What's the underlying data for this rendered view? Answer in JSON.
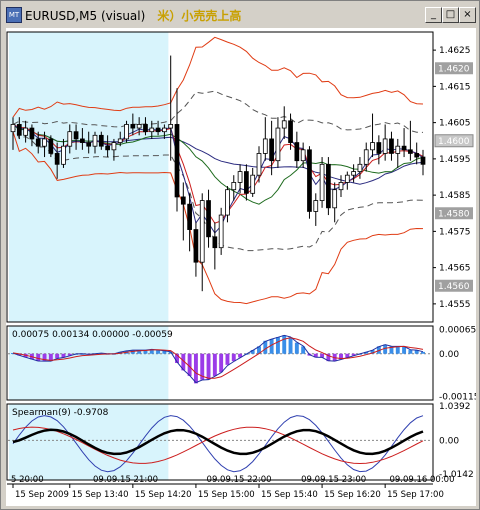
{
  "window": {
    "title": "EURUSD,M5 (visual)",
    "jp_title": "米）小売売上高",
    "minimize_label": "_",
    "maximize_label": "□",
    "close_label": "×"
  },
  "colors": {
    "highlight": "#d8f4fc",
    "bull": "#ffffff",
    "bear": "#000000",
    "band_outer": "#e03c14",
    "band_inner": "#555555",
    "ma_dark": "#2b2b80",
    "ma_green": "#1e6b1e",
    "ma_red": "#cc1e1e",
    "macd_pos": "#3a8ee8",
    "macd_neg": "#9b3ce8",
    "sig_blue": "#2030a0",
    "sig_red": "#cc1e1e",
    "spear_black": "#000000",
    "spear_blue": "#3040b0",
    "spear_red": "#cc1e1e",
    "price_label_bg": "#a0a0a0",
    "price_label_active_bg": "#c8c8c8"
  },
  "chart_data": {
    "type": "candlestick",
    "symbol": "EURUSD",
    "timeframe": "M5",
    "price_axis": {
      "ylim": [
        1.455,
        1.463
      ],
      "ticks": [
        "1.4625",
        "1.4615",
        "1.4605",
        "1.4595",
        "1.4585",
        "1.4575",
        "1.4565",
        "1.4555"
      ],
      "tick_values": [
        1.4625,
        1.4615,
        1.4605,
        1.4595,
        1.4585,
        1.4575,
        1.4565,
        1.4555
      ],
      "grey_labels": [
        "1.4620",
        "1.4580",
        "1.4560"
      ],
      "grey_values": [
        1.462,
        1.458,
        1.456
      ],
      "current_label": "1.4600",
      "current_value": 1.46
    },
    "candles": [
      {
        "o": 1.46025,
        "h": 1.46065,
        "l": 1.45975,
        "c": 1.46045
      },
      {
        "o": 1.46045,
        "h": 1.46065,
        "l": 1.46005,
        "c": 1.46015
      },
      {
        "o": 1.46015,
        "h": 1.46055,
        "l": 1.45995,
        "c": 1.46035
      },
      {
        "o": 1.46035,
        "h": 1.46045,
        "l": 1.45985,
        "c": 1.46005
      },
      {
        "o": 1.46005,
        "h": 1.46025,
        "l": 1.45965,
        "c": 1.45985
      },
      {
        "o": 1.45985,
        "h": 1.46025,
        "l": 1.45955,
        "c": 1.46005
      },
      {
        "o": 1.46005,
        "h": 1.46015,
        "l": 1.45955,
        "c": 1.45965
      },
      {
        "o": 1.45965,
        "h": 1.45995,
        "l": 1.45895,
        "c": 1.45935
      },
      {
        "o": 1.45935,
        "h": 1.46005,
        "l": 1.45925,
        "c": 1.45985
      },
      {
        "o": 1.45985,
        "h": 1.46045,
        "l": 1.45965,
        "c": 1.46025
      },
      {
        "o": 1.46025,
        "h": 1.46045,
        "l": 1.45975,
        "c": 1.46005
      },
      {
        "o": 1.46005,
        "h": 1.46035,
        "l": 1.45975,
        "c": 1.45995
      },
      {
        "o": 1.45995,
        "h": 1.46025,
        "l": 1.45965,
        "c": 1.45985
      },
      {
        "o": 1.45985,
        "h": 1.46025,
        "l": 1.45965,
        "c": 1.46015
      },
      {
        "o": 1.46015,
        "h": 1.46025,
        "l": 1.45975,
        "c": 1.45985
      },
      {
        "o": 1.45985,
        "h": 1.46015,
        "l": 1.45955,
        "c": 1.45975
      },
      {
        "o": 1.45975,
        "h": 1.46005,
        "l": 1.45945,
        "c": 1.45995
      },
      {
        "o": 1.45995,
        "h": 1.46025,
        "l": 1.45985,
        "c": 1.46005
      },
      {
        "o": 1.46005,
        "h": 1.46055,
        "l": 1.45995,
        "c": 1.46045
      },
      {
        "o": 1.46045,
        "h": 1.46075,
        "l": 1.46015,
        "c": 1.46035
      },
      {
        "o": 1.46035,
        "h": 1.46065,
        "l": 1.46015,
        "c": 1.46045
      },
      {
        "o": 1.46045,
        "h": 1.46065,
        "l": 1.46015,
        "c": 1.46025
      },
      {
        "o": 1.46025,
        "h": 1.46055,
        "l": 1.46005,
        "c": 1.46035
      },
      {
        "o": 1.46035,
        "h": 1.46055,
        "l": 1.46015,
        "c": 1.46025
      },
      {
        "o": 1.46025,
        "h": 1.46045,
        "l": 1.46005,
        "c": 1.46035
      },
      {
        "o": 1.46035,
        "h": 1.46235,
        "l": 1.45945,
        "c": 1.46045
      },
      {
        "o": 1.46045,
        "h": 1.46145,
        "l": 1.45805,
        "c": 1.45845
      },
      {
        "o": 1.45845,
        "h": 1.45885,
        "l": 1.45725,
        "c": 1.45825
      },
      {
        "o": 1.45825,
        "h": 1.45855,
        "l": 1.45695,
        "c": 1.45755
      },
      {
        "o": 1.45755,
        "h": 1.45775,
        "l": 1.45625,
        "c": 1.45665
      },
      {
        "o": 1.45665,
        "h": 1.45855,
        "l": 1.45585,
        "c": 1.45835
      },
      {
        "o": 1.45835,
        "h": 1.45865,
        "l": 1.45705,
        "c": 1.45735
      },
      {
        "o": 1.45735,
        "h": 1.45775,
        "l": 1.45645,
        "c": 1.45705
      },
      {
        "o": 1.45705,
        "h": 1.45815,
        "l": 1.45685,
        "c": 1.45795
      },
      {
        "o": 1.45795,
        "h": 1.45875,
        "l": 1.45775,
        "c": 1.45865
      },
      {
        "o": 1.45865,
        "h": 1.45905,
        "l": 1.45835,
        "c": 1.45885
      },
      {
        "o": 1.45885,
        "h": 1.45935,
        "l": 1.45855,
        "c": 1.45915
      },
      {
        "o": 1.45915,
        "h": 1.45935,
        "l": 1.45835,
        "c": 1.45855
      },
      {
        "o": 1.45855,
        "h": 1.45925,
        "l": 1.45845,
        "c": 1.45905
      },
      {
        "o": 1.45905,
        "h": 1.45985,
        "l": 1.45885,
        "c": 1.45965
      },
      {
        "o": 1.45965,
        "h": 1.46065,
        "l": 1.45945,
        "c": 1.46005
      },
      {
        "o": 1.46005,
        "h": 1.46055,
        "l": 1.45905,
        "c": 1.45945
      },
      {
        "o": 1.45945,
        "h": 1.46065,
        "l": 1.45925,
        "c": 1.46035
      },
      {
        "o": 1.46035,
        "h": 1.46095,
        "l": 1.46005,
        "c": 1.46055
      },
      {
        "o": 1.46055,
        "h": 1.46075,
        "l": 1.45975,
        "c": 1.45995
      },
      {
        "o": 1.45995,
        "h": 1.46025,
        "l": 1.45925,
        "c": 1.45945
      },
      {
        "o": 1.45945,
        "h": 1.45995,
        "l": 1.45925,
        "c": 1.45975
      },
      {
        "o": 1.45975,
        "h": 1.45985,
        "l": 1.45785,
        "c": 1.45805
      },
      {
        "o": 1.45805,
        "h": 1.45855,
        "l": 1.45765,
        "c": 1.45835
      },
      {
        "o": 1.45835,
        "h": 1.45955,
        "l": 1.45815,
        "c": 1.45935
      },
      {
        "o": 1.45935,
        "h": 1.45955,
        "l": 1.45795,
        "c": 1.45815
      },
      {
        "o": 1.45815,
        "h": 1.45885,
        "l": 1.45775,
        "c": 1.45865
      },
      {
        "o": 1.45865,
        "h": 1.45905,
        "l": 1.45845,
        "c": 1.45885
      },
      {
        "o": 1.45885,
        "h": 1.45915,
        "l": 1.45865,
        "c": 1.45905
      },
      {
        "o": 1.45905,
        "h": 1.45935,
        "l": 1.45885,
        "c": 1.45915
      },
      {
        "o": 1.45915,
        "h": 1.45955,
        "l": 1.45895,
        "c": 1.45935
      },
      {
        "o": 1.45935,
        "h": 1.45995,
        "l": 1.45915,
        "c": 1.45975
      },
      {
        "o": 1.45975,
        "h": 1.46075,
        "l": 1.45955,
        "c": 1.45995
      },
      {
        "o": 1.45995,
        "h": 1.46015,
        "l": 1.45935,
        "c": 1.45965
      },
      {
        "o": 1.45965,
        "h": 1.46045,
        "l": 1.45945,
        "c": 1.46005
      },
      {
        "o": 1.46005,
        "h": 1.46025,
        "l": 1.45945,
        "c": 1.45965
      },
      {
        "o": 1.45965,
        "h": 1.46005,
        "l": 1.45925,
        "c": 1.45985
      },
      {
        "o": 1.45985,
        "h": 1.46035,
        "l": 1.45955,
        "c": 1.45975
      },
      {
        "o": 1.45975,
        "h": 1.46055,
        "l": 1.45945,
        "c": 1.45965
      },
      {
        "o": 1.45965,
        "h": 1.45995,
        "l": 1.45935,
        "c": 1.45955
      },
      {
        "o": 1.45955,
        "h": 1.45975,
        "l": 1.45905,
        "c": 1.45935
      }
    ],
    "highlight_span": [
      0,
      24
    ],
    "macd": {
      "header": "0.00075 0.00134 0.00000 -0.00059",
      "ylim": [
        -0.00125,
        0.00075
      ],
      "ticks": [
        "0.00065",
        "0.00",
        "-0.00115"
      ],
      "tick_values": [
        0.00065,
        0.0,
        -0.00115
      ],
      "hist": [
        2e-05,
        -5e-05,
        -0.0001,
        -0.00015,
        -0.0002,
        -0.0002,
        -0.0002,
        -0.00012,
        -0.0001,
        -5e-05,
        0.0,
        0.0,
        -2e-05,
        0.0,
        2e-05,
        0.0,
        0.0,
        5e-05,
        8e-05,
        0.0001,
        0.0001,
        0.0001,
        0.00012,
        0.0001,
        8e-05,
        5e-05,
        -0.00025,
        -0.00045,
        -0.0006,
        -0.0008,
        -0.0007,
        -0.0007,
        -0.0006,
        -0.0005,
        -0.0003,
        -0.0002,
        -0.0001,
        0.0,
        0.0001,
        0.0002,
        0.00035,
        0.0004,
        0.00045,
        0.0005,
        0.00045,
        0.0003,
        0.0002,
        -5e-05,
        -0.0001,
        -0.0001,
        -0.0002,
        -0.0002,
        -0.00015,
        -0.0001,
        -5e-05,
        0.0,
        5e-05,
        0.0001,
        0.0002,
        0.00025,
        0.0002,
        0.0002,
        0.0002,
        0.0001,
        0.0001,
        5e-05
      ]
    },
    "spearman": {
      "header": "Spearman(9) -0.9708",
      "ylim": [
        -1.2,
        1.1
      ],
      "ticks": [
        "1.0392",
        "0.00",
        "-1.0142"
      ],
      "tick_values": [
        1.0392,
        0.0,
        -1.0142
      ]
    },
    "time_axis": {
      "labels": [
        "15 Sep 2009",
        "15 Sep 13:40",
        "15 Sep 14:20",
        "15 Sep 15:00",
        "15 Sep 15:40",
        "15 Sep 16:20",
        "15 Sep 17:00"
      ],
      "label_index": [
        0,
        9,
        19,
        29,
        39,
        49,
        59
      ],
      "inner_labels": [
        "5 20:00",
        "09.09.15 21:00",
        "09.09.15 22:00",
        "09.09.15 23:00",
        "09.09.16 00:00"
      ],
      "inner_label_index": [
        0,
        13,
        31,
        46,
        60
      ]
    }
  }
}
